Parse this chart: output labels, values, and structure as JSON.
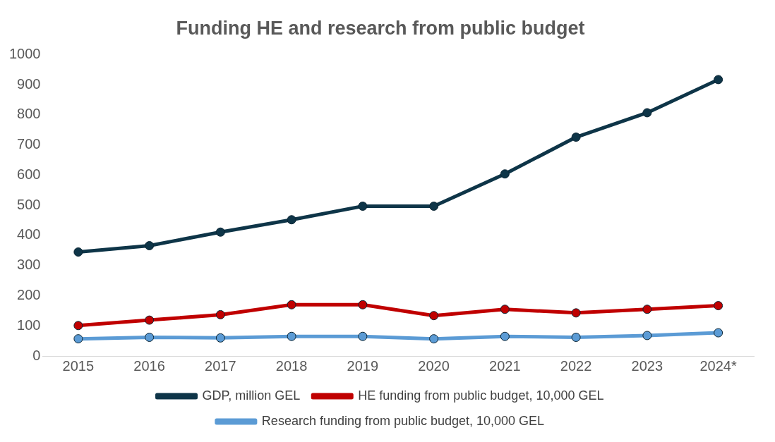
{
  "chart_data": {
    "type": "line",
    "title": "Funding HE and research from public budget",
    "categories": [
      "2015",
      "2016",
      "2017",
      "2018",
      "2019",
      "2020",
      "2021",
      "2022",
      "2023",
      "2024*"
    ],
    "series": [
      {
        "name": "GDP, million GEL",
        "color": "#0e3548",
        "values": [
          345,
          366,
          411,
          452,
          497,
          497,
          604,
          726,
          807,
          917
        ]
      },
      {
        "name": "HE funding from public budget, 10,000 GEL",
        "color": "#c00000",
        "values": [
          101,
          119,
          137,
          170,
          170,
          134,
          155,
          143,
          155,
          167
        ]
      },
      {
        "name": "Research funding from public budget, 10,000 GEL",
        "color": "#5b9bd5",
        "values": [
          57,
          62,
          60,
          65,
          65,
          57,
          65,
          62,
          68,
          77
        ]
      }
    ],
    "ylim": [
      0,
      1000
    ],
    "yticks": [
      0,
      100,
      200,
      300,
      400,
      500,
      600,
      700,
      800,
      900,
      1000
    ],
    "grid": false,
    "legend": "bottom",
    "marker": "circle",
    "line_style": "solid"
  }
}
